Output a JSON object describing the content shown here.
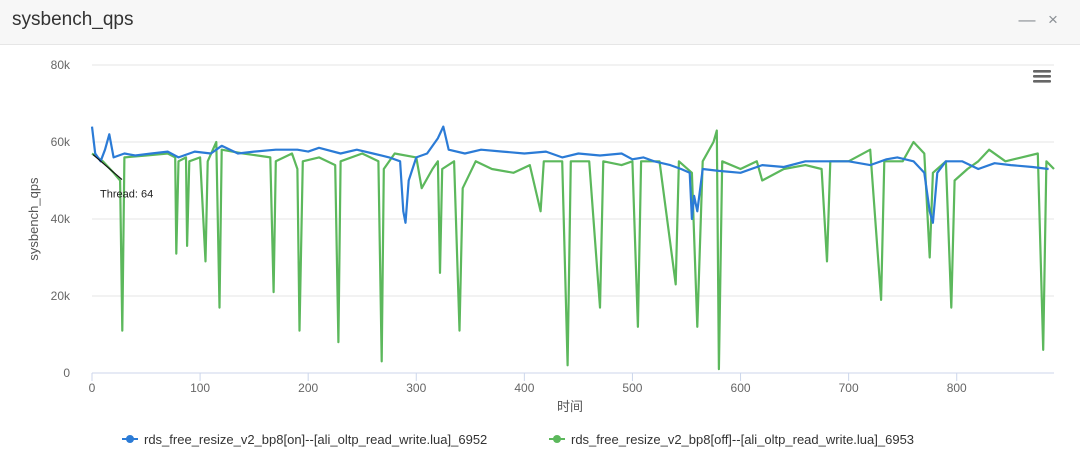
{
  "panel": {
    "title": "sysbench_qps",
    "minimize_icon": "minimize-icon",
    "close_icon": "close-icon",
    "menu_icon": "hamburger-menu-icon"
  },
  "chart_data": {
    "type": "line",
    "title": "",
    "xlabel": "时间",
    "ylabel": "sysbench_qps",
    "xlim": [
      0,
      890
    ],
    "ylim": [
      0,
      80000
    ],
    "x_ticks": [
      0,
      100,
      200,
      300,
      400,
      500,
      600,
      700,
      800
    ],
    "y_ticks": [
      0,
      20000,
      40000,
      60000,
      80000
    ],
    "y_tick_labels": [
      "0",
      "20k",
      "40k",
      "60k",
      "80k"
    ],
    "grid": true,
    "legend_position": "bottom",
    "annotation": {
      "text": "Thread: 64",
      "x": 0,
      "y": 57000
    },
    "series": [
      {
        "name": "rds_free_resize_v2_bp8[on]--[ali_oltp_read_write.lua]_6952",
        "color": "#2b7bd6",
        "points": [
          [
            0,
            64000
          ],
          [
            3,
            57000
          ],
          [
            8,
            55000
          ],
          [
            12,
            58000
          ],
          [
            16,
            62000
          ],
          [
            20,
            56000
          ],
          [
            30,
            57000
          ],
          [
            40,
            56500
          ],
          [
            55,
            57000
          ],
          [
            70,
            57500
          ],
          [
            80,
            56000
          ],
          [
            95,
            57500
          ],
          [
            110,
            57000
          ],
          [
            120,
            59000
          ],
          [
            135,
            57000
          ],
          [
            150,
            57500
          ],
          [
            170,
            58000
          ],
          [
            190,
            58000
          ],
          [
            200,
            57500
          ],
          [
            210,
            58500
          ],
          [
            230,
            57000
          ],
          [
            245,
            58000
          ],
          [
            260,
            57000
          ],
          [
            275,
            56000
          ],
          [
            285,
            55000
          ],
          [
            288,
            42000
          ],
          [
            290,
            39000
          ],
          [
            293,
            50000
          ],
          [
            300,
            56000
          ],
          [
            310,
            57000
          ],
          [
            320,
            61000
          ],
          [
            325,
            64000
          ],
          [
            330,
            58000
          ],
          [
            345,
            57000
          ],
          [
            360,
            58000
          ],
          [
            380,
            57500
          ],
          [
            400,
            57000
          ],
          [
            420,
            57500
          ],
          [
            435,
            56000
          ],
          [
            450,
            57000
          ],
          [
            470,
            56500
          ],
          [
            490,
            57000
          ],
          [
            500,
            55500
          ],
          [
            510,
            56000
          ],
          [
            520,
            55000
          ],
          [
            535,
            54000
          ],
          [
            545,
            53000
          ],
          [
            553,
            52000
          ],
          [
            555,
            40000
          ],
          [
            557,
            46000
          ],
          [
            560,
            42000
          ],
          [
            565,
            53000
          ],
          [
            580,
            52500
          ],
          [
            600,
            52000
          ],
          [
            620,
            54000
          ],
          [
            640,
            53500
          ],
          [
            660,
            55000
          ],
          [
            680,
            55000
          ],
          [
            700,
            55000
          ],
          [
            720,
            54000
          ],
          [
            735,
            55500
          ],
          [
            745,
            56000
          ],
          [
            760,
            55000
          ],
          [
            770,
            52000
          ],
          [
            775,
            42000
          ],
          [
            778,
            39000
          ],
          [
            782,
            52000
          ],
          [
            790,
            55000
          ],
          [
            805,
            55000
          ],
          [
            820,
            53000
          ],
          [
            835,
            54500
          ],
          [
            850,
            54000
          ],
          [
            870,
            53500
          ],
          [
            885,
            53000
          ]
        ]
      },
      {
        "name": "rds_free_resize_v2_bp8[off]--[ali_oltp_read_write.lua]_6953",
        "color": "#5cb85c",
        "points": [
          [
            0,
            57000
          ],
          [
            10,
            55000
          ],
          [
            20,
            52000
          ],
          [
            26,
            50000
          ],
          [
            28,
            11000
          ],
          [
            30,
            56000
          ],
          [
            50,
            56500
          ],
          [
            70,
            57000
          ],
          [
            77,
            56000
          ],
          [
            78,
            31000
          ],
          [
            80,
            55000
          ],
          [
            87,
            56000
          ],
          [
            88,
            33000
          ],
          [
            90,
            55000
          ],
          [
            100,
            56000
          ],
          [
            105,
            29000
          ],
          [
            107,
            55000
          ],
          [
            115,
            60000
          ],
          [
            118,
            17000
          ],
          [
            120,
            58000
          ],
          [
            140,
            57000
          ],
          [
            165,
            56000
          ],
          [
            168,
            21000
          ],
          [
            170,
            55000
          ],
          [
            185,
            57000
          ],
          [
            190,
            53000
          ],
          [
            192,
            11000
          ],
          [
            195,
            55000
          ],
          [
            210,
            56000
          ],
          [
            225,
            54000
          ],
          [
            228,
            8000
          ],
          [
            230,
            55000
          ],
          [
            250,
            57000
          ],
          [
            265,
            55000
          ],
          [
            268,
            3000
          ],
          [
            270,
            53000
          ],
          [
            280,
            57000
          ],
          [
            300,
            56000
          ],
          [
            305,
            48000
          ],
          [
            315,
            53000
          ],
          [
            320,
            55000
          ],
          [
            322,
            26000
          ],
          [
            324,
            53000
          ],
          [
            335,
            55000
          ],
          [
            340,
            11000
          ],
          [
            343,
            48000
          ],
          [
            355,
            55000
          ],
          [
            370,
            53000
          ],
          [
            390,
            52000
          ],
          [
            405,
            54000
          ],
          [
            415,
            42000
          ],
          [
            418,
            55000
          ],
          [
            435,
            55000
          ],
          [
            440,
            2000
          ],
          [
            443,
            55000
          ],
          [
            460,
            55000
          ],
          [
            470,
            17000
          ],
          [
            473,
            55000
          ],
          [
            490,
            54000
          ],
          [
            500,
            55000
          ],
          [
            505,
            12000
          ],
          [
            508,
            55000
          ],
          [
            525,
            55000
          ],
          [
            540,
            23000
          ],
          [
            543,
            55000
          ],
          [
            555,
            52000
          ],
          [
            560,
            12000
          ],
          [
            565,
            55000
          ],
          [
            575,
            60000
          ],
          [
            578,
            63000
          ],
          [
            580,
            1000
          ],
          [
            583,
            55000
          ],
          [
            600,
            53000
          ],
          [
            615,
            55000
          ],
          [
            620,
            50000
          ],
          [
            640,
            53000
          ],
          [
            660,
            54000
          ],
          [
            675,
            53000
          ],
          [
            680,
            29000
          ],
          [
            683,
            55000
          ],
          [
            700,
            55000
          ],
          [
            720,
            58000
          ],
          [
            730,
            19000
          ],
          [
            733,
            55000
          ],
          [
            750,
            55000
          ],
          [
            760,
            60000
          ],
          [
            770,
            57000
          ],
          [
            775,
            30000
          ],
          [
            778,
            52000
          ],
          [
            790,
            55000
          ],
          [
            795,
            17000
          ],
          [
            798,
            50000
          ],
          [
            810,
            53000
          ],
          [
            820,
            55000
          ],
          [
            830,
            58000
          ],
          [
            845,
            55000
          ],
          [
            860,
            56000
          ],
          [
            875,
            57000
          ],
          [
            880,
            6000
          ],
          [
            883,
            55000
          ],
          [
            890,
            53000
          ]
        ]
      }
    ]
  }
}
